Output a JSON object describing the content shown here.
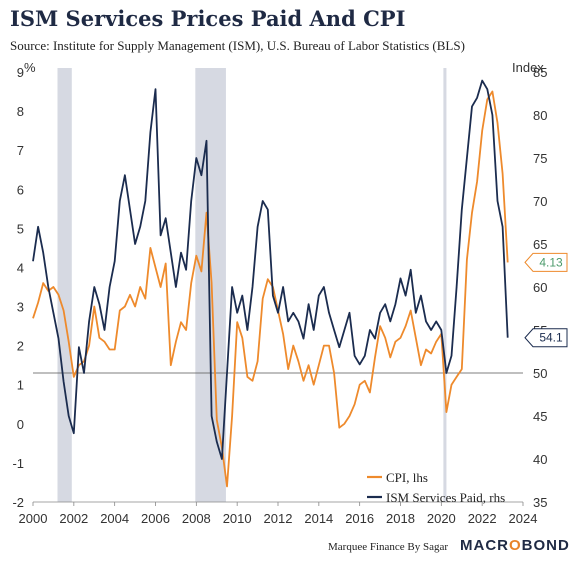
{
  "header": {
    "title": "ISM Services Prices Paid And CPI",
    "subtitle": "Source: Institute for Supply Management (ISM), U.S. Bureau of Labor Statistics (BLS)"
  },
  "footer": {
    "credit": "Marquee Finance By Sagar",
    "brand_main": "MACR",
    "brand_accent": "O",
    "brand_end": "BOND"
  },
  "colors": {
    "cpi": "#ee8a2c",
    "ism": "#1b2c4f",
    "recession": "#d6d9e2",
    "reference_line": "#555555",
    "axis_text": "#333333"
  },
  "chart_data": {
    "type": "line",
    "left_axis": {
      "unit_label": "%",
      "min": -2,
      "max": 9,
      "ticks": [
        -2,
        -1,
        0,
        1,
        2,
        3,
        4,
        5,
        6,
        7,
        8,
        9
      ]
    },
    "right_axis": {
      "unit_label": "Index",
      "min": 35,
      "max": 85,
      "ticks": [
        35,
        40,
        45,
        50,
        55,
        60,
        65,
        70,
        75,
        80,
        85
      ]
    },
    "x_axis": {
      "min": 2000,
      "max": 2024,
      "ticks": [
        2000,
        2002,
        2004,
        2006,
        2008,
        2010,
        2012,
        2014,
        2016,
        2018,
        2020,
        2022,
        2024
      ]
    },
    "reference_line": {
      "axis": "right",
      "value": 50
    },
    "recession_bands": [
      {
        "start": 2001.2,
        "end": 2001.9
      },
      {
        "start": 2007.95,
        "end": 2009.45
      },
      {
        "start": 2020.1,
        "end": 2020.25
      }
    ],
    "legend": {
      "position": "bottom-right"
    },
    "series": [
      {
        "name": "CPI, lhs",
        "axis": "left",
        "x": [
          2000.0,
          2000.25,
          2000.5,
          2000.75,
          2001.0,
          2001.25,
          2001.5,
          2001.75,
          2002.0,
          2002.25,
          2002.5,
          2002.75,
          2003.0,
          2003.25,
          2003.5,
          2003.75,
          2004.0,
          2004.25,
          2004.5,
          2004.75,
          2005.0,
          2005.25,
          2005.5,
          2005.75,
          2006.0,
          2006.25,
          2006.5,
          2006.75,
          2007.0,
          2007.25,
          2007.5,
          2007.75,
          2008.0,
          2008.25,
          2008.5,
          2008.75,
          2009.0,
          2009.25,
          2009.5,
          2009.75,
          2010.0,
          2010.25,
          2010.5,
          2010.75,
          2011.0,
          2011.25,
          2011.5,
          2011.75,
          2012.0,
          2012.25,
          2012.5,
          2012.75,
          2013.0,
          2013.25,
          2013.5,
          2013.75,
          2014.0,
          2014.25,
          2014.5,
          2014.75,
          2015.0,
          2015.25,
          2015.5,
          2015.75,
          2016.0,
          2016.25,
          2016.5,
          2016.75,
          2017.0,
          2017.25,
          2017.5,
          2017.75,
          2018.0,
          2018.25,
          2018.5,
          2018.75,
          2019.0,
          2019.25,
          2019.5,
          2019.75,
          2020.0,
          2020.25,
          2020.5,
          2020.75,
          2021.0,
          2021.25,
          2021.5,
          2021.75,
          2022.0,
          2022.25,
          2022.5,
          2022.75,
          2023.0,
          2023.25
        ],
        "values": [
          2.7,
          3.1,
          3.6,
          3.4,
          3.5,
          3.3,
          2.9,
          2.1,
          1.2,
          1.5,
          1.6,
          2.0,
          3.0,
          2.2,
          2.1,
          1.9,
          1.9,
          2.9,
          3.0,
          3.3,
          3.0,
          3.5,
          3.2,
          4.5,
          4.0,
          3.5,
          4.1,
          1.5,
          2.1,
          2.6,
          2.4,
          3.6,
          4.3,
          3.9,
          5.4,
          3.6,
          0.1,
          -0.6,
          -1.6,
          0.2,
          2.6,
          2.2,
          1.2,
          1.1,
          1.6,
          3.2,
          3.7,
          3.5,
          2.9,
          2.3,
          1.4,
          2.0,
          1.6,
          1.1,
          1.5,
          1.0,
          1.5,
          2.0,
          2.0,
          1.3,
          -0.1,
          0.0,
          0.2,
          0.5,
          1.0,
          1.1,
          0.8,
          1.7,
          2.5,
          2.2,
          1.7,
          2.1,
          2.2,
          2.5,
          2.9,
          2.2,
          1.5,
          1.9,
          1.8,
          2.1,
          2.3,
          0.3,
          1.0,
          1.2,
          1.4,
          4.2,
          5.4,
          6.2,
          7.5,
          8.3,
          8.5,
          7.7,
          6.4,
          4.13
        ]
      },
      {
        "name": "ISM Services Paid, rhs",
        "axis": "right",
        "x": [
          2000.0,
          2000.25,
          2000.5,
          2000.75,
          2001.0,
          2001.25,
          2001.5,
          2001.75,
          2002.0,
          2002.25,
          2002.5,
          2002.75,
          2003.0,
          2003.25,
          2003.5,
          2003.75,
          2004.0,
          2004.25,
          2004.5,
          2004.75,
          2005.0,
          2005.25,
          2005.5,
          2005.75,
          2006.0,
          2006.25,
          2006.5,
          2006.75,
          2007.0,
          2007.25,
          2007.5,
          2007.75,
          2008.0,
          2008.25,
          2008.5,
          2008.75,
          2009.0,
          2009.25,
          2009.5,
          2009.75,
          2010.0,
          2010.25,
          2010.5,
          2010.75,
          2011.0,
          2011.25,
          2011.5,
          2011.75,
          2012.0,
          2012.25,
          2012.5,
          2012.75,
          2013.0,
          2013.25,
          2013.5,
          2013.75,
          2014.0,
          2014.25,
          2014.5,
          2014.75,
          2015.0,
          2015.25,
          2015.5,
          2015.75,
          2016.0,
          2016.25,
          2016.5,
          2016.75,
          2017.0,
          2017.25,
          2017.5,
          2017.75,
          2018.0,
          2018.25,
          2018.5,
          2018.75,
          2019.0,
          2019.25,
          2019.5,
          2019.75,
          2020.0,
          2020.25,
          2020.5,
          2020.75,
          2021.0,
          2021.25,
          2021.5,
          2021.75,
          2022.0,
          2022.25,
          2022.5,
          2022.75,
          2023.0,
          2023.25
        ],
        "values": [
          63,
          67,
          64,
          60,
          57,
          54,
          49,
          45,
          43,
          53,
          50,
          56,
          60,
          58,
          55,
          60,
          63,
          70,
          73,
          69,
          65,
          67,
          70,
          78,
          83,
          66,
          68,
          64,
          60,
          64,
          62,
          70,
          75,
          73,
          77,
          45,
          42,
          40,
          50,
          60,
          57,
          59,
          55,
          60,
          67,
          70,
          69,
          59,
          57,
          60,
          56,
          57,
          56,
          54,
          58,
          55,
          59,
          60,
          57,
          55,
          53,
          55,
          57,
          52,
          51,
          52,
          55,
          54,
          57,
          58,
          56,
          58,
          61,
          59,
          62,
          57,
          59,
          56,
          55,
          56,
          55,
          50,
          52,
          60,
          69,
          75,
          81,
          82,
          84,
          83,
          80,
          70,
          67,
          54.1
        ]
      }
    ],
    "callouts": [
      {
        "series": "CPI, lhs",
        "label": "4.13"
      },
      {
        "series": "ISM Services Paid, rhs",
        "label": "54.1"
      }
    ]
  }
}
